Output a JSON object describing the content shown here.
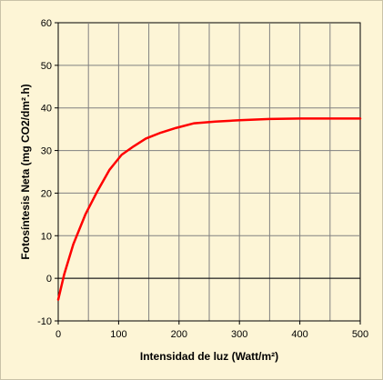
{
  "chart_data": {
    "type": "line",
    "title": "",
    "xlabel": "Intensidad de luz (Watt/m²)",
    "ylabel": "Fotosíntesis Neta (mg CO2/dm².h)",
    "xlim": [
      0,
      500
    ],
    "ylim": [
      -10,
      60
    ],
    "xticks": [
      0,
      100,
      200,
      300,
      400,
      500
    ],
    "yticks": [
      -10,
      0,
      10,
      20,
      30,
      40,
      50,
      60
    ],
    "grid": true,
    "legend": "none",
    "colors": {
      "background": "#fdf5d6",
      "plot_area": "#fdf5d6",
      "grid": "#808080",
      "line": "#ff0000"
    },
    "series": [
      {
        "x": [
          0,
          10,
          25,
          45,
          65,
          85,
          105,
          125,
          145,
          170,
          195,
          225,
          260,
          300,
          350,
          400,
          500
        ],
        "y": [
          -5,
          1,
          8,
          15,
          20.5,
          25.5,
          29,
          31,
          32.8,
          34.2,
          35.3,
          36.4,
          36.8,
          37.1,
          37.4,
          37.5,
          37.5
        ]
      }
    ]
  }
}
